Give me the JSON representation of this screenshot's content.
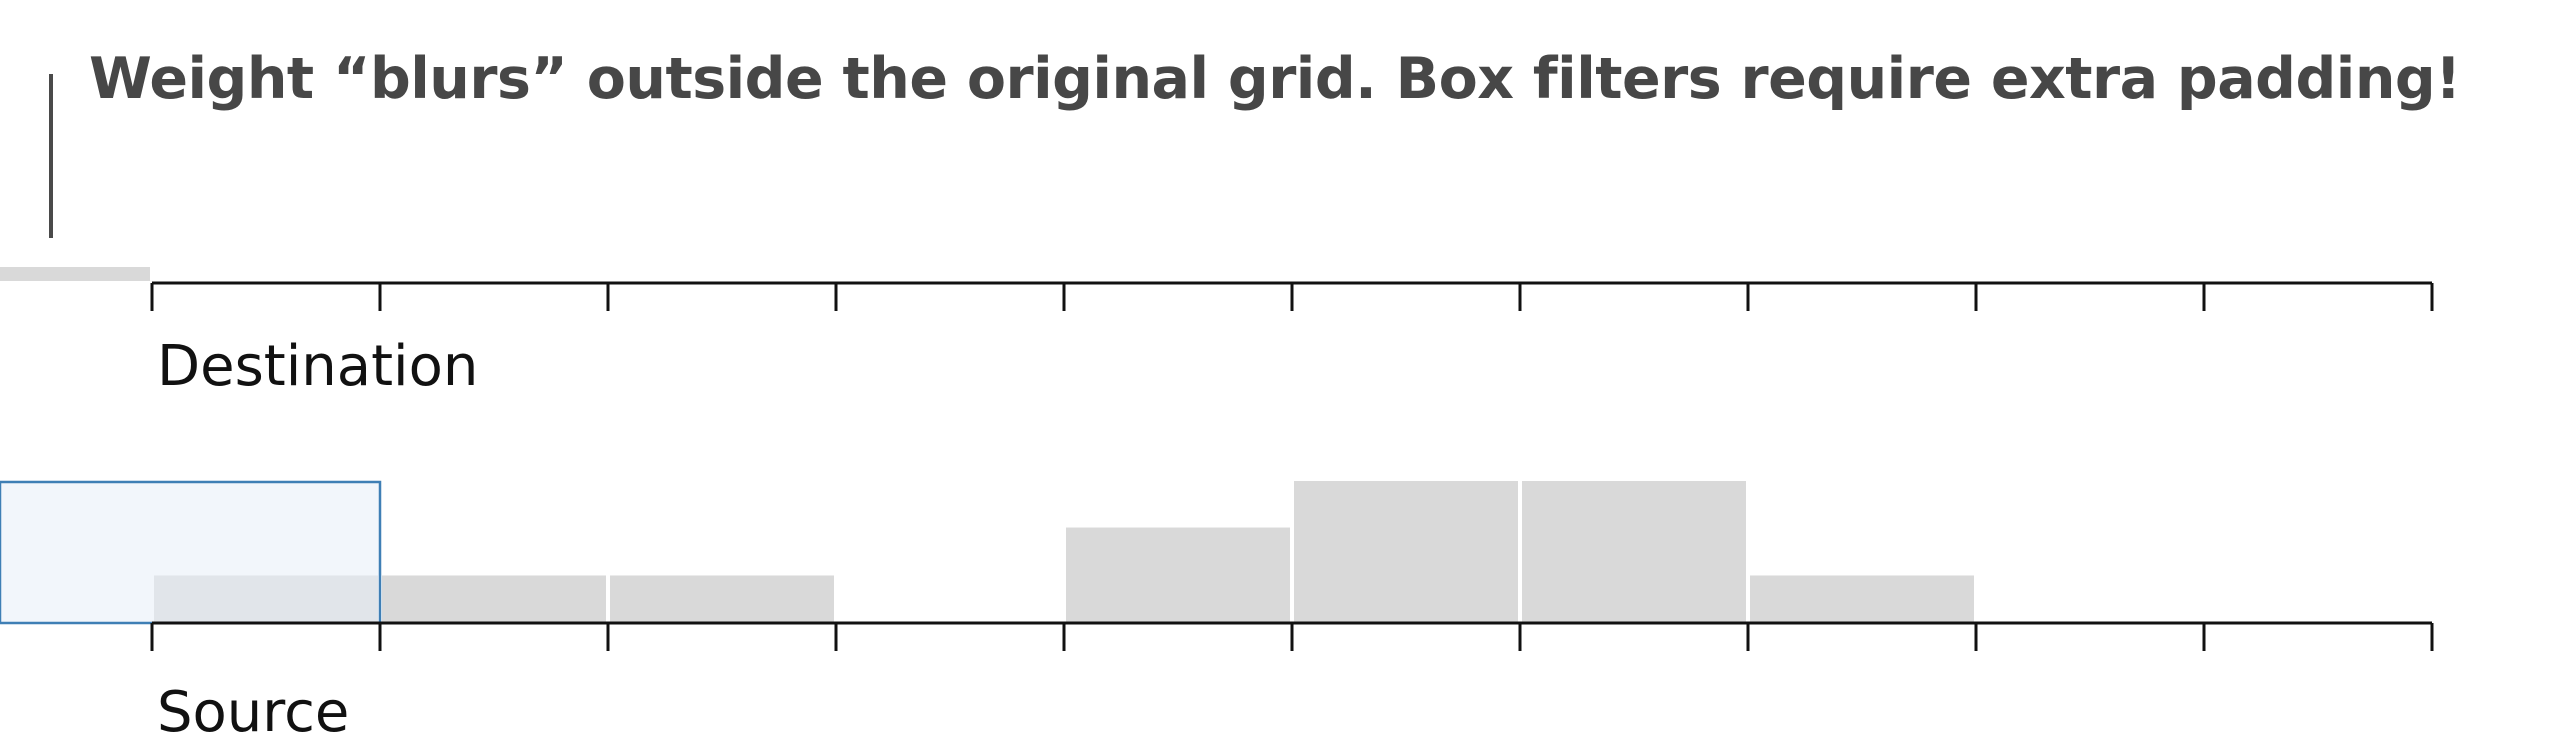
{
  "title": "Weight “blurs” outside the original grid. Box filters require extra padding!",
  "destination_label": "Destination",
  "source_label": "Source",
  "colors": {
    "bar_fill": "#d9d9d9",
    "filter_fill": "#e8eff7",
    "filter_stroke": "#3f7fb5",
    "axis": "#111111",
    "title": "#474747"
  },
  "destination": {
    "cells": 10,
    "weights": [
      0.2,
      0,
      0,
      0,
      0,
      0,
      0,
      0,
      0,
      0,
      0
    ]
  },
  "source": {
    "cells": 10,
    "weights": [
      0.33,
      0.33,
      0.33,
      0,
      0.67,
      1,
      1,
      0.33,
      0,
      0
    ]
  },
  "filter_box": {
    "start_cell": -1,
    "end_cell": 1
  }
}
